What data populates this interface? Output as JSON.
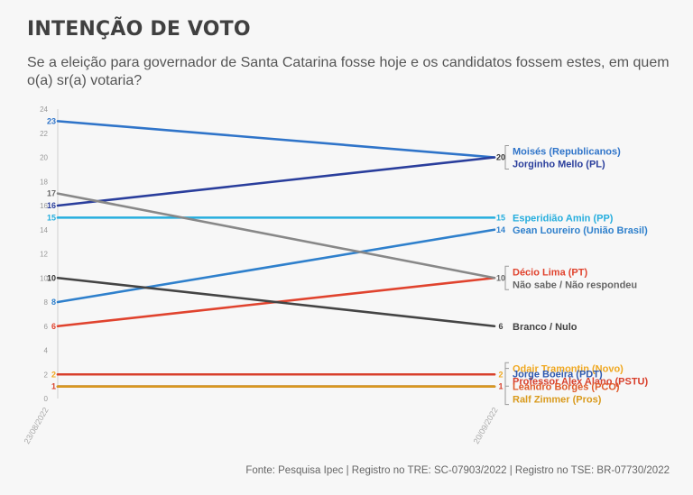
{
  "header": {
    "title": "INTENÇÃO DE VOTO",
    "subtitle": "Se a eleição para governador de Santa Catarina fosse hoje e os candidatos fossem estes, em quem o(a) sr(a) votaria?"
  },
  "footer": {
    "source": "Fonte: Pesquisa Ipec | Registro no TRE: SC-07903/2022 | Registro no TSE: BR-07730/2022"
  },
  "chart_data": {
    "type": "line",
    "x": [
      "23/08/2022",
      "20/09/2022"
    ],
    "ylim": [
      0,
      24
    ],
    "yticks": [
      0,
      2,
      4,
      6,
      8,
      10,
      12,
      14,
      16,
      18,
      20,
      22,
      24
    ],
    "grid": false,
    "series": [
      {
        "name": "Moisés (Republicanos)",
        "values": [
          23,
          20
        ],
        "color": "#2f74c9"
      },
      {
        "name": "Jorginho Mello (PL)",
        "values": [
          16,
          20
        ],
        "color": "#2a3e9c"
      },
      {
        "name": "Esperidião Amin (PP)",
        "values": [
          15,
          15
        ],
        "color": "#26aede"
      },
      {
        "name": "Gean Loureiro (União Brasil)",
        "values": [
          8,
          14
        ],
        "color": "#2f80cc"
      },
      {
        "name": "Décio Lima (PT)",
        "values": [
          6,
          10
        ],
        "color": "#e0432e"
      },
      {
        "name": "Não sabe / Não respondeu",
        "values": [
          17,
          10
        ],
        "color": "#888888"
      },
      {
        "name": "Branco / Nulo",
        "values": [
          10,
          6
        ],
        "color": "#444444"
      },
      {
        "name": "Odair Tramontin (Novo)",
        "values": [
          2,
          2
        ],
        "color": "#f0a820"
      },
      {
        "name": "Professor Alex Alano (PSTU)",
        "values": [
          2,
          2
        ],
        "color": "#d8402c"
      },
      {
        "name": "Jorge Boeira (PDT)",
        "values": [
          1,
          1
        ],
        "color": "#2f5ab0"
      },
      {
        "name": "Leandro Borges (PCO)",
        "values": [
          1,
          1
        ],
        "color": "#e05a2a"
      },
      {
        "name": "Ralf Zimmer (Pros)",
        "values": [
          1,
          1
        ],
        "color": "#d99a1c"
      }
    ],
    "start_labels": [
      {
        "value": 23,
        "text": "23",
        "color": "#2f74c9"
      },
      {
        "value": 17,
        "text": "17",
        "color": "#666666"
      },
      {
        "value": 16,
        "text": "16",
        "color": "#2a3e9c"
      },
      {
        "value": 15,
        "text": "15",
        "color": "#26aede"
      },
      {
        "value": 10,
        "text": "10",
        "color": "#333333"
      },
      {
        "value": 8,
        "text": "8",
        "color": "#2f80cc"
      },
      {
        "value": 6,
        "text": "6",
        "color": "#e0432e"
      },
      {
        "value": 2,
        "text": "2",
        "color": "#f0a820"
      },
      {
        "value": 1,
        "text": "1",
        "color": "#d8402c"
      }
    ],
    "end_labels": [
      {
        "value": 20,
        "text": "20",
        "color": "#333333"
      },
      {
        "value": 15,
        "text": "15",
        "color": "#26aede"
      },
      {
        "value": 14,
        "text": "14",
        "color": "#2f80cc"
      },
      {
        "value": 10,
        "text": "10",
        "color": "#666666"
      },
      {
        "value": 6,
        "text": "6",
        "color": "#444444"
      },
      {
        "value": 2,
        "text": "2",
        "color": "#f0a820"
      },
      {
        "value": 1,
        "text": "1",
        "color": "#d8402c"
      }
    ],
    "legend_groups": [
      {
        "value": 20,
        "entries": [
          {
            "text": "Moisés (Republicanos)",
            "color": "#2f74c9"
          },
          {
            "text": "Jorginho Mello (PL)",
            "color": "#2a3e9c"
          }
        ]
      },
      {
        "value": 15,
        "entries": [
          {
            "text": "Esperidião Amin (PP)",
            "color": "#26aede"
          }
        ]
      },
      {
        "value": 14,
        "entries": [
          {
            "text": "Gean Loureiro (União Brasil)",
            "color": "#2f80cc"
          }
        ]
      },
      {
        "value": 10,
        "entries": [
          {
            "text": "Décio Lima (PT)",
            "color": "#e0432e"
          },
          {
            "text": "Não sabe / Não respondeu",
            "color": "#666666"
          }
        ]
      },
      {
        "value": 6,
        "entries": [
          {
            "text": "Branco / Nulo",
            "color": "#444444"
          }
        ]
      },
      {
        "value": 2,
        "entries": [
          {
            "text": "Odair Tramontin (Novo)",
            "color": "#f0a820"
          },
          {
            "text": "Professor Alex Alano (PSTU)",
            "color": "#d8402c"
          }
        ]
      },
      {
        "value": 1,
        "entries": [
          {
            "text": "Jorge Boeira (PDT)",
            "color": "#2f5ab0"
          },
          {
            "text": "Leandro Borges (PCO)",
            "color": "#e05a2a"
          },
          {
            "text": "Ralf Zimmer (Pros)",
            "color": "#d99a1c"
          }
        ]
      }
    ]
  }
}
